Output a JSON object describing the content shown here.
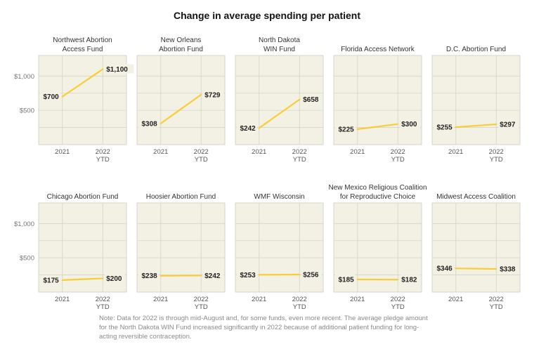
{
  "title": "Change in average spending per patient",
  "note": "Note: Data for 2022 is through mid-August and, for some funds, even more recent. The average pledge amount for the North Dakota WIN Fund increased significantly in 2022 because of additional patient funding for long-acting reversible contraception.",
  "colors": {
    "panel_bg": "#f3f0e4",
    "line": "#f7cd3a",
    "grid": "#d6d3c7",
    "border": "#cfccc0"
  },
  "chart_data": [
    {
      "type": "line",
      "title_lines": [
        "Northwest Abortion",
        "Access Fund"
      ],
      "categories": [
        "2021",
        "2022 YTD"
      ],
      "values": [
        700,
        1100
      ],
      "value_labels": [
        "$700",
        "$1,100"
      ],
      "ylim": [
        0,
        1300
      ],
      "y_ticks": [
        500,
        1000
      ],
      "y_tick_labels": [
        "$500",
        "$1,000"
      ]
    },
    {
      "type": "line",
      "title_lines": [
        "New Orleans",
        "Abortion Fund"
      ],
      "categories": [
        "2021",
        "2022 YTD"
      ],
      "values": [
        308,
        729
      ],
      "value_labels": [
        "$308",
        "$729"
      ],
      "ylim": [
        0,
        1300
      ]
    },
    {
      "type": "line",
      "title_lines": [
        "North Dakota",
        "WIN Fund"
      ],
      "categories": [
        "2021",
        "2022 YTD"
      ],
      "values": [
        242,
        658
      ],
      "value_labels": [
        "$242",
        "$658"
      ],
      "ylim": [
        0,
        1300
      ]
    },
    {
      "type": "line",
      "title_lines": [
        "Florida Access Network"
      ],
      "categories": [
        "2021",
        "2022 YTD"
      ],
      "values": [
        225,
        300
      ],
      "value_labels": [
        "$225",
        "$300"
      ],
      "ylim": [
        0,
        1300
      ]
    },
    {
      "type": "line",
      "title_lines": [
        "D.C. Abortion Fund"
      ],
      "categories": [
        "2021",
        "2022 YTD"
      ],
      "values": [
        255,
        297
      ],
      "value_labels": [
        "$255",
        "$297"
      ],
      "ylim": [
        0,
        1300
      ]
    },
    {
      "type": "line",
      "title_lines": [
        "Chicago Abortion Fund"
      ],
      "categories": [
        "2021",
        "2022 YTD"
      ],
      "values": [
        175,
        200
      ],
      "value_labels": [
        "$175",
        "$200"
      ],
      "ylim": [
        0,
        1300
      ],
      "y_ticks": [
        500,
        1000
      ],
      "y_tick_labels": [
        "$500",
        "$1,000"
      ]
    },
    {
      "type": "line",
      "title_lines": [
        "Hoosier Abortion Fund"
      ],
      "categories": [
        "2021",
        "2022 YTD"
      ],
      "values": [
        238,
        242
      ],
      "value_labels": [
        "$238",
        "$242"
      ],
      "ylim": [
        0,
        1300
      ]
    },
    {
      "type": "line",
      "title_lines": [
        "WMF Wisconsin"
      ],
      "categories": [
        "2021",
        "2022 YTD"
      ],
      "values": [
        253,
        256
      ],
      "value_labels": [
        "$253",
        "$256"
      ],
      "ylim": [
        0,
        1300
      ]
    },
    {
      "type": "line",
      "title_lines": [
        "New Mexico Religious Coalition",
        "for Reproductive Choice"
      ],
      "categories": [
        "2021",
        "2022 YTD"
      ],
      "values": [
        185,
        182
      ],
      "value_labels": [
        "$185",
        "$182"
      ],
      "ylim": [
        0,
        1300
      ]
    },
    {
      "type": "line",
      "title_lines": [
        "Midwest Access Coalition"
      ],
      "categories": [
        "2021",
        "2022 YTD"
      ],
      "values": [
        346,
        338
      ],
      "value_labels": [
        "$346",
        "$338"
      ],
      "ylim": [
        0,
        1300
      ]
    }
  ]
}
